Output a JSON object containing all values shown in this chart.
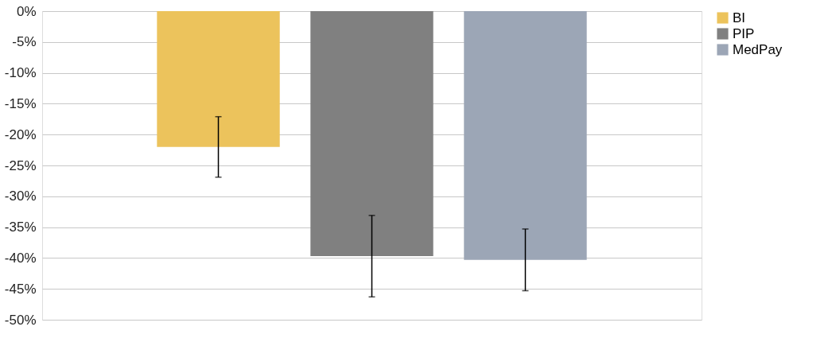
{
  "chart_data": {
    "type": "bar",
    "categories": [
      null
    ],
    "series": [
      {
        "name": "BI",
        "color": "#ecc35c",
        "values": [
          -22.0
        ],
        "errors": [
          4.9
        ]
      },
      {
        "name": "PIP",
        "color": "#808080",
        "values": [
          -39.7
        ],
        "errors": [
          6.6
        ]
      },
      {
        "name": "MedPay",
        "color": "#9ca6b6",
        "values": [
          -40.3
        ],
        "errors": [
          5.0
        ]
      }
    ],
    "ylim": [
      -50,
      0
    ],
    "yticks": [
      {
        "value": 0,
        "label": "0%"
      },
      {
        "value": -5,
        "label": "-5%"
      },
      {
        "value": -10,
        "label": "-10%"
      },
      {
        "value": -15,
        "label": "-15%"
      },
      {
        "value": -20,
        "label": "-20%"
      },
      {
        "value": -25,
        "label": "-25%"
      },
      {
        "value": -30,
        "label": "-30%"
      },
      {
        "value": -35,
        "label": "-35%"
      },
      {
        "value": -40,
        "label": "-40%"
      },
      {
        "value": -45,
        "label": "-45%"
      },
      {
        "value": -50,
        "label": "-50%"
      }
    ],
    "grid": "y",
    "legend": "top right"
  }
}
